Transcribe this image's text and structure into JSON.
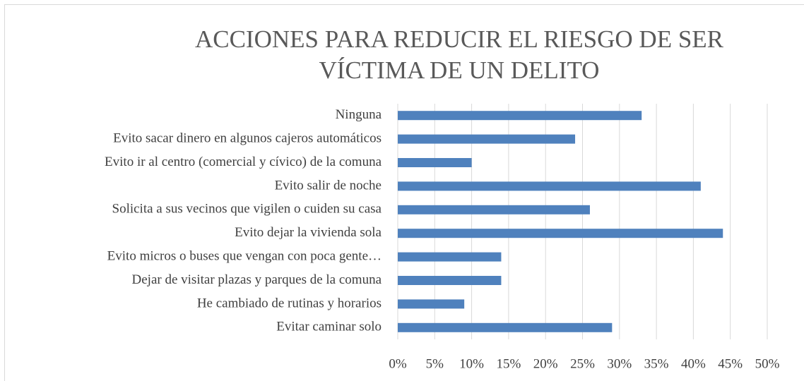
{
  "chart_data": {
    "type": "bar",
    "orientation": "horizontal",
    "title": "ACCIONES PARA REDUCIR EL RIESGO DE SER VÍCTIMA DE UN DELITO",
    "categories": [
      "Ninguna",
      "Evito sacar dinero en algunos cajeros automáticos",
      "Evito ir al centro (comercial y cívico) de la comuna",
      "Evito salir de noche",
      "Solicita a sus vecinos que vigilen o cuiden su casa",
      "Evito dejar la vivienda sola",
      "Evito micros o buses que vengan con poca gente…",
      "Dejar de visitar plazas y parques de la comuna",
      "He cambiado de rutinas y horarios",
      "Evitar caminar solo"
    ],
    "values": [
      33,
      24,
      10,
      41,
      26,
      44,
      14,
      14,
      9,
      29
    ],
    "color": "#4f81bd",
    "xlim": [
      0,
      50
    ],
    "xticks": [
      {
        "value": 0,
        "label": "0%"
      },
      {
        "value": 5,
        "label": "5%"
      },
      {
        "value": 10,
        "label": "10%"
      },
      {
        "value": 15,
        "label": "15%"
      },
      {
        "value": 20,
        "label": "20%"
      },
      {
        "value": 25,
        "label": "25%"
      },
      {
        "value": 30,
        "label": "30%"
      },
      {
        "value": 35,
        "label": "35%"
      },
      {
        "value": 40,
        "label": "40%"
      },
      {
        "value": 45,
        "label": "45%"
      },
      {
        "value": 50,
        "label": "50%"
      }
    ],
    "grid": true
  }
}
